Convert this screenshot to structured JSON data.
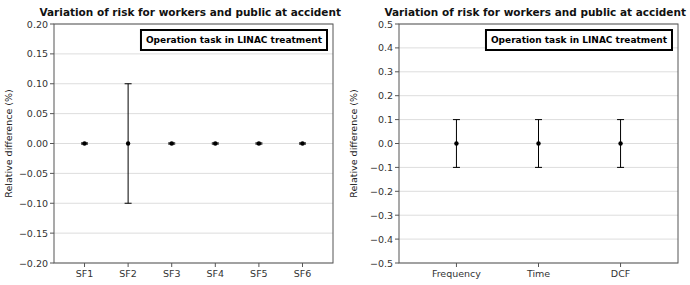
{
  "chart_data": [
    {
      "type": "errorbar",
      "title": "Variation of risk for workers and public at accident",
      "ylabel": "Relative difference (%)",
      "categories": [
        "SF1",
        "SF2",
        "SF3",
        "SF4",
        "SF5",
        "SF6"
      ],
      "series": [
        {
          "name": "Operation task in LINAC treatment",
          "color": "black",
          "values": [
            0.0,
            0.0,
            0.0,
            0.0,
            0.0,
            0.0
          ],
          "error_upper": [
            0.001,
            0.1,
            0.001,
            0.001,
            0.001,
            0.001
          ],
          "error_lower": [
            0.001,
            0.1,
            0.001,
            0.001,
            0.001,
            0.001
          ]
        }
      ],
      "ylim": [
        -0.2,
        0.2
      ],
      "yticks": [
        {
          "value": -0.2,
          "label": "−0.20"
        },
        {
          "value": -0.15,
          "label": "−0.15"
        },
        {
          "value": -0.1,
          "label": "−0.10"
        },
        {
          "value": -0.05,
          "label": "−0.05"
        },
        {
          "value": 0.0,
          "label": "0.00"
        },
        {
          "value": 0.05,
          "label": "0.05"
        },
        {
          "value": 0.1,
          "label": "0.10"
        },
        {
          "value": 0.15,
          "label": "0.15"
        },
        {
          "value": 0.2,
          "label": "0.20"
        }
      ],
      "grid": true,
      "legend": "upper-right"
    },
    {
      "type": "errorbar",
      "title": "Variation of risk for workers and public at accident",
      "ylabel": "Relative difference (%)",
      "categories": [
        "Frequency",
        "Time",
        "DCF"
      ],
      "series": [
        {
          "name": "Operation task in LINAC treatment",
          "color": "black",
          "values": [
            0.0,
            0.0,
            0.0
          ],
          "error_upper": [
            0.1,
            0.1,
            0.1
          ],
          "error_lower": [
            0.1,
            0.1,
            0.1
          ]
        }
      ],
      "ylim": [
        -0.5,
        0.5
      ],
      "yticks": [
        {
          "value": -0.5,
          "label": "−0.5"
        },
        {
          "value": -0.4,
          "label": "−0.4"
        },
        {
          "value": -0.3,
          "label": "−0.3"
        },
        {
          "value": -0.2,
          "label": "−0.2"
        },
        {
          "value": -0.1,
          "label": "−0.1"
        },
        {
          "value": 0.0,
          "label": "0.0"
        },
        {
          "value": 0.1,
          "label": "0.1"
        },
        {
          "value": 0.2,
          "label": "0.2"
        },
        {
          "value": 0.3,
          "label": "0.3"
        },
        {
          "value": 0.4,
          "label": "0.4"
        },
        {
          "value": 0.5,
          "label": "0.5"
        }
      ],
      "grid": true,
      "legend": "upper-right"
    }
  ]
}
